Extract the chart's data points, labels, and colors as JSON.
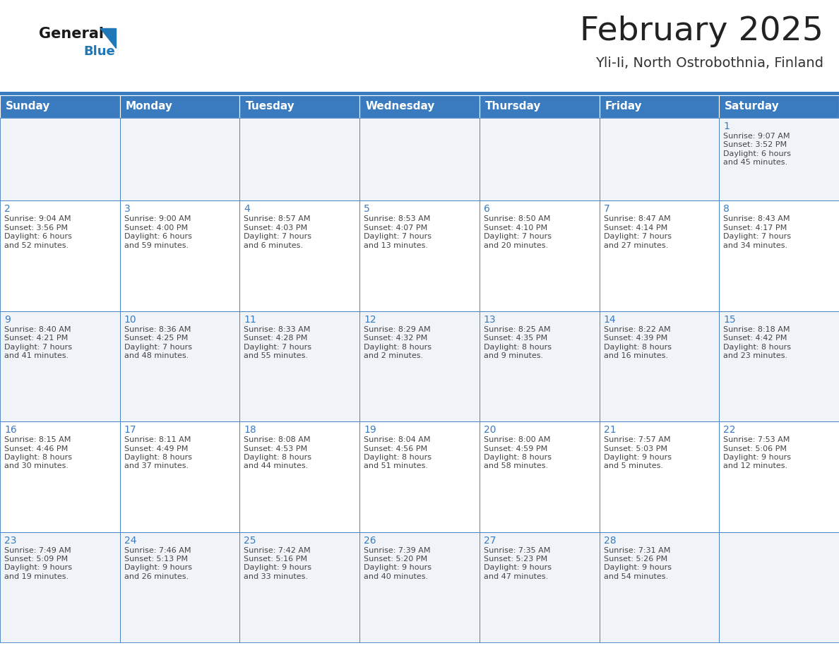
{
  "title": "February 2025",
  "subtitle": "Yli-Ii, North Ostrobothnia, Finland",
  "days_of_week": [
    "Sunday",
    "Monday",
    "Tuesday",
    "Wednesday",
    "Thursday",
    "Friday",
    "Saturday"
  ],
  "header_bg": "#3a7bbf",
  "header_text": "#ffffff",
  "row_bg_alt": "#f0f4f8",
  "row_bg_white": "#ffffff",
  "cell_border": "#3a7bbf",
  "day_num_color": "#3a7bbf",
  "text_color": "#444444",
  "logo_general_color": "#1a1a1a",
  "logo_blue_color": "#2178b8",
  "calendar": [
    [
      {
        "day": "",
        "sunrise": "",
        "sunset": "",
        "daylight": ""
      },
      {
        "day": "",
        "sunrise": "",
        "sunset": "",
        "daylight": ""
      },
      {
        "day": "",
        "sunrise": "",
        "sunset": "",
        "daylight": ""
      },
      {
        "day": "",
        "sunrise": "",
        "sunset": "",
        "daylight": ""
      },
      {
        "day": "",
        "sunrise": "",
        "sunset": "",
        "daylight": ""
      },
      {
        "day": "",
        "sunrise": "",
        "sunset": "",
        "daylight": ""
      },
      {
        "day": "1",
        "sunrise": "9:07 AM",
        "sunset": "3:52 PM",
        "daylight": "6 hours\nand 45 minutes."
      }
    ],
    [
      {
        "day": "2",
        "sunrise": "9:04 AM",
        "sunset": "3:56 PM",
        "daylight": "6 hours\nand 52 minutes."
      },
      {
        "day": "3",
        "sunrise": "9:00 AM",
        "sunset": "4:00 PM",
        "daylight": "6 hours\nand 59 minutes."
      },
      {
        "day": "4",
        "sunrise": "8:57 AM",
        "sunset": "4:03 PM",
        "daylight": "7 hours\nand 6 minutes."
      },
      {
        "day": "5",
        "sunrise": "8:53 AM",
        "sunset": "4:07 PM",
        "daylight": "7 hours\nand 13 minutes."
      },
      {
        "day": "6",
        "sunrise": "8:50 AM",
        "sunset": "4:10 PM",
        "daylight": "7 hours\nand 20 minutes."
      },
      {
        "day": "7",
        "sunrise": "8:47 AM",
        "sunset": "4:14 PM",
        "daylight": "7 hours\nand 27 minutes."
      },
      {
        "day": "8",
        "sunrise": "8:43 AM",
        "sunset": "4:17 PM",
        "daylight": "7 hours\nand 34 minutes."
      }
    ],
    [
      {
        "day": "9",
        "sunrise": "8:40 AM",
        "sunset": "4:21 PM",
        "daylight": "7 hours\nand 41 minutes."
      },
      {
        "day": "10",
        "sunrise": "8:36 AM",
        "sunset": "4:25 PM",
        "daylight": "7 hours\nand 48 minutes."
      },
      {
        "day": "11",
        "sunrise": "8:33 AM",
        "sunset": "4:28 PM",
        "daylight": "7 hours\nand 55 minutes."
      },
      {
        "day": "12",
        "sunrise": "8:29 AM",
        "sunset": "4:32 PM",
        "daylight": "8 hours\nand 2 minutes."
      },
      {
        "day": "13",
        "sunrise": "8:25 AM",
        "sunset": "4:35 PM",
        "daylight": "8 hours\nand 9 minutes."
      },
      {
        "day": "14",
        "sunrise": "8:22 AM",
        "sunset": "4:39 PM",
        "daylight": "8 hours\nand 16 minutes."
      },
      {
        "day": "15",
        "sunrise": "8:18 AM",
        "sunset": "4:42 PM",
        "daylight": "8 hours\nand 23 minutes."
      }
    ],
    [
      {
        "day": "16",
        "sunrise": "8:15 AM",
        "sunset": "4:46 PM",
        "daylight": "8 hours\nand 30 minutes."
      },
      {
        "day": "17",
        "sunrise": "8:11 AM",
        "sunset": "4:49 PM",
        "daylight": "8 hours\nand 37 minutes."
      },
      {
        "day": "18",
        "sunrise": "8:08 AM",
        "sunset": "4:53 PM",
        "daylight": "8 hours\nand 44 minutes."
      },
      {
        "day": "19",
        "sunrise": "8:04 AM",
        "sunset": "4:56 PM",
        "daylight": "8 hours\nand 51 minutes."
      },
      {
        "day": "20",
        "sunrise": "8:00 AM",
        "sunset": "4:59 PM",
        "daylight": "8 hours\nand 58 minutes."
      },
      {
        "day": "21",
        "sunrise": "7:57 AM",
        "sunset": "5:03 PM",
        "daylight": "9 hours\nand 5 minutes."
      },
      {
        "day": "22",
        "sunrise": "7:53 AM",
        "sunset": "5:06 PM",
        "daylight": "9 hours\nand 12 minutes."
      }
    ],
    [
      {
        "day": "23",
        "sunrise": "7:49 AM",
        "sunset": "5:09 PM",
        "daylight": "9 hours\nand 19 minutes."
      },
      {
        "day": "24",
        "sunrise": "7:46 AM",
        "sunset": "5:13 PM",
        "daylight": "9 hours\nand 26 minutes."
      },
      {
        "day": "25",
        "sunrise": "7:42 AM",
        "sunset": "5:16 PM",
        "daylight": "9 hours\nand 33 minutes."
      },
      {
        "day": "26",
        "sunrise": "7:39 AM",
        "sunset": "5:20 PM",
        "daylight": "9 hours\nand 40 minutes."
      },
      {
        "day": "27",
        "sunrise": "7:35 AM",
        "sunset": "5:23 PM",
        "daylight": "9 hours\nand 47 minutes."
      },
      {
        "day": "28",
        "sunrise": "7:31 AM",
        "sunset": "5:26 PM",
        "daylight": "9 hours\nand 54 minutes."
      },
      {
        "day": "",
        "sunrise": "",
        "sunset": "",
        "daylight": ""
      }
    ]
  ],
  "row_heights_ratio": [
    1.35,
    1.0,
    1.0,
    1.0,
    1.0
  ],
  "cell_font_size": 8.0,
  "day_num_font_size": 10.0,
  "header_font_size": 11.0
}
